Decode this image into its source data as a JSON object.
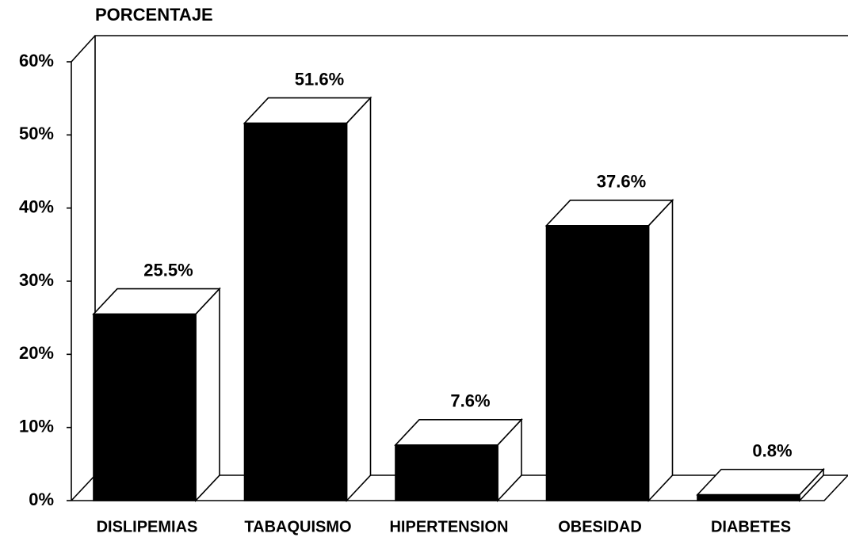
{
  "chart_data": {
    "type": "bar3d",
    "y_axis_label": "PORCENTAJE",
    "categories": [
      "DISLIPEMIAS",
      "TABAQUISMO",
      "HIPERTENSION",
      "OBESIDAD",
      "DIABETES"
    ],
    "values": [
      25.5,
      51.6,
      7.6,
      37.6,
      0.8
    ],
    "value_labels": [
      "25.5%",
      "51.6%",
      "7.6%",
      "37.6%",
      "0.8%"
    ],
    "color": "#000000",
    "ylim": [
      0,
      60
    ],
    "yticks": [
      {
        "value": 0,
        "label": "0%"
      },
      {
        "value": 10,
        "label": "10%"
      },
      {
        "value": 20,
        "label": "20%"
      },
      {
        "value": 30,
        "label": "30%"
      },
      {
        "value": 40,
        "label": "40%"
      },
      {
        "value": 50,
        "label": "50%"
      },
      {
        "value": 60,
        "label": "60%"
      }
    ]
  }
}
